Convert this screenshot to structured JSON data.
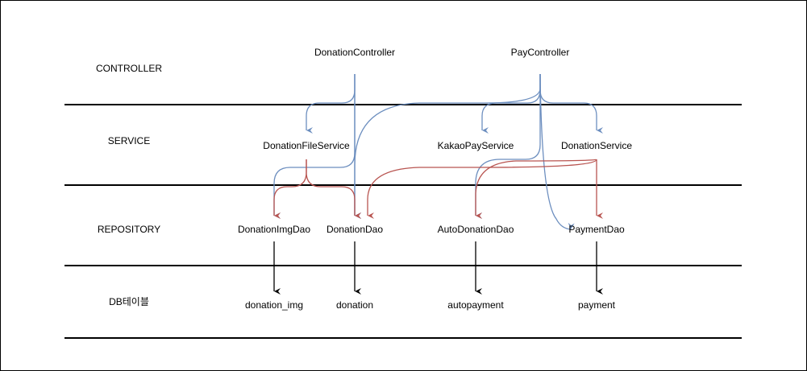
{
  "layers": {
    "controller": "CONTROLLER",
    "service": "SERVICE",
    "repository": "REPOSITORY",
    "db": "DB테이블"
  },
  "controllers": {
    "donation": "DonationController",
    "pay": "PayController"
  },
  "services": {
    "donation_file": "DonationFileService",
    "kakao_pay": "KakaoPayService",
    "donation": "DonationService"
  },
  "repositories": {
    "donation_img_dao": "DonationImgDao",
    "donation_dao": "DonationDao",
    "auto_donation_dao": "AutoDonationDao",
    "payment_dao": "PaymentDao"
  },
  "tables": {
    "donation_img": "donation_img",
    "donation": "donation",
    "autopayment": "autopayment",
    "payment": "payment"
  },
  "colors": {
    "controller_arrow": "#6c8ebf",
    "service_arrow": "#b85450",
    "table_arrow": "#000000"
  }
}
